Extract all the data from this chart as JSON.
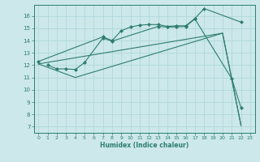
{
  "bg_color": "#cce8ea",
  "grid_color": "#b0d8db",
  "line_color": "#2e7d6e",
  "xlabel": "Humidex (Indice chaleur)",
  "xlim": [
    -0.5,
    23.5
  ],
  "ylim": [
    6.5,
    16.9
  ],
  "xticks": [
    0,
    1,
    2,
    3,
    4,
    5,
    6,
    7,
    8,
    9,
    10,
    11,
    12,
    13,
    14,
    15,
    16,
    17,
    18,
    19,
    20,
    21,
    22,
    23
  ],
  "yticks": [
    7,
    8,
    9,
    10,
    11,
    12,
    13,
    14,
    15,
    16
  ],
  "line1_x": [
    0,
    7,
    8,
    9,
    10,
    11,
    12,
    13,
    14,
    15,
    16,
    17,
    18,
    22
  ],
  "line1_y": [
    12.3,
    14.3,
    14.0,
    14.8,
    15.1,
    15.25,
    15.3,
    15.3,
    15.15,
    15.2,
    15.2,
    15.8,
    16.6,
    15.5
  ],
  "line2_x": [
    0,
    20,
    22
  ],
  "line2_y": [
    12.1,
    14.6,
    7.1
  ],
  "line3_x": [
    0,
    4,
    20,
    22
  ],
  "line3_y": [
    12.1,
    11.0,
    14.6,
    7.1
  ],
  "line4_x": [
    1,
    2,
    3,
    4,
    5,
    7,
    8,
    13,
    14,
    15,
    16,
    17,
    21,
    22
  ],
  "line4_y": [
    12.0,
    11.7,
    11.7,
    11.65,
    12.2,
    14.2,
    13.95,
    15.15,
    15.1,
    15.1,
    15.15,
    15.75,
    10.9,
    8.55
  ]
}
